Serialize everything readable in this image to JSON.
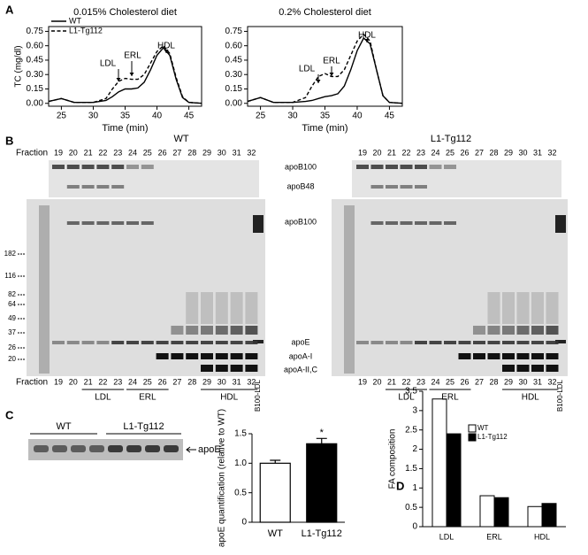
{
  "panels": [
    "A",
    "B",
    "C",
    "D"
  ],
  "chart_data": [
    {
      "type": "line",
      "title": "0.015% Cholesterol diet",
      "xlabel": "Time (min)",
      "ylabel": "TC (mg/dl)",
      "x": [
        23,
        25,
        27,
        30,
        32,
        33,
        34,
        35,
        36,
        37,
        38,
        39,
        40,
        41,
        42,
        43,
        44,
        45,
        47
      ],
      "xlim": [
        23,
        47
      ],
      "xticks": [
        25,
        30,
        35,
        40,
        45
      ],
      "ylim": [
        -0.03,
        0.8
      ],
      "yticks": [
        {
          "value": 0,
          "label": "0.00"
        },
        0.15,
        {
          "value": 0.3,
          "label": "0.30"
        },
        0.45,
        {
          "value": 0.6,
          "label": "0.60"
        },
        0.75
      ],
      "legend": "upper left",
      "series": [
        {
          "name": "WT",
          "color": "#000",
          "linestyle": "solid",
          "values": [
            0.02,
            0.05,
            0.01,
            0.01,
            0.03,
            0.07,
            0.12,
            0.15,
            0.15,
            0.16,
            0.22,
            0.35,
            0.5,
            0.58,
            0.5,
            0.25,
            0.06,
            0.01,
            0
          ]
        },
        {
          "name": "L1-Tg112",
          "color": "#000",
          "linestyle": "dashed",
          "values": [
            0.02,
            0.05,
            0.01,
            0.01,
            0.05,
            0.15,
            0.23,
            0.26,
            0.25,
            0.25,
            0.3,
            0.42,
            0.54,
            0.6,
            0.52,
            0.27,
            0.07,
            0.01,
            0
          ]
        }
      ],
      "annotations": [
        "LDL",
        "ERL",
        "HDL"
      ]
    },
    {
      "type": "line",
      "title": "0.2% Cholesterol diet",
      "xlabel": "Time (min)",
      "x": [
        23,
        25,
        27,
        30,
        32,
        33,
        34,
        35,
        36,
        37,
        38,
        39,
        40,
        41,
        42,
        43,
        44,
        45,
        47
      ],
      "xlim": [
        23,
        47
      ],
      "xticks": [
        25,
        30,
        35,
        40,
        45
      ],
      "ylim": [
        -0.03,
        0.8
      ],
      "yticks": [
        {
          "value": 0,
          "label": "0.00"
        },
        0.15,
        {
          "value": 0.3,
          "label": "0.30"
        },
        0.45,
        {
          "value": 0.6,
          "label": "0.60"
        },
        0.75
      ],
      "series": [
        {
          "color": "#000",
          "linestyle": "solid",
          "values": [
            0.02,
            0.06,
            0.01,
            0.01,
            0.02,
            0.03,
            0.05,
            0.07,
            0.08,
            0.1,
            0.18,
            0.35,
            0.55,
            0.68,
            0.62,
            0.35,
            0.08,
            0.01,
            0
          ]
        },
        {
          "color": "#000",
          "linestyle": "dashed",
          "values": [
            0.02,
            0.06,
            0.01,
            0.01,
            0.06,
            0.18,
            0.28,
            0.31,
            0.28,
            0.28,
            0.35,
            0.5,
            0.65,
            0.72,
            0.65,
            0.35,
            0.08,
            0.01,
            0
          ]
        }
      ],
      "annotations": [
        "LDL",
        "ERL",
        "HDL"
      ]
    },
    {
      "type": "bar",
      "ylabel": "apoE quantification (relative to WT)",
      "categories": [
        "WT",
        "L1-Tg112"
      ],
      "values": [
        1.0,
        1.33
      ],
      "errors": [
        0.05,
        0.09
      ],
      "colors": [
        "#fff",
        "#000"
      ],
      "ylim": [
        0,
        1.5
      ],
      "yticks": [
        0,
        0.5,
        {
          "value": 1,
          "label": "1.0"
        },
        1.5
      ],
      "annotation": "*"
    },
    {
      "type": "grouped_bar",
      "ylabel": "FA composition",
      "categories": [
        "LDL",
        "ERL",
        "HDL"
      ],
      "series": [
        {
          "name": "WT",
          "color": "#fff",
          "values": [
            3.3,
            0.8,
            0.52
          ]
        },
        {
          "name": "L1-Tg112",
          "color": "#000",
          "values": [
            2.4,
            0.75,
            0.6
          ]
        }
      ],
      "ylim": [
        0,
        3.5
      ],
      "yticks": [
        0,
        0.5,
        1,
        1.5,
        2,
        2.5,
        3,
        3.5
      ],
      "legend": "upper right"
    }
  ],
  "gel": {
    "titles": [
      "WT",
      "L1-Tg112"
    ],
    "fraction_label": "Fraction",
    "fractions": [
      19,
      20,
      21,
      22,
      23,
      24,
      25,
      26,
      27,
      28,
      29,
      30,
      31,
      32
    ],
    "top_bands": [
      "apoB100",
      "apoB48"
    ],
    "bottom_bands": [
      "apoB100",
      "apoE",
      "apoA-I",
      "apoA-II,C"
    ],
    "markers": [
      182,
      116,
      82,
      64,
      49,
      37,
      26,
      20
    ],
    "groups": [
      "LDL",
      "ERL",
      "HDL"
    ],
    "standard": "B100-LDL"
  },
  "blot": {
    "groups": [
      "WT",
      "L1-Tg112"
    ],
    "band": "apoE"
  }
}
